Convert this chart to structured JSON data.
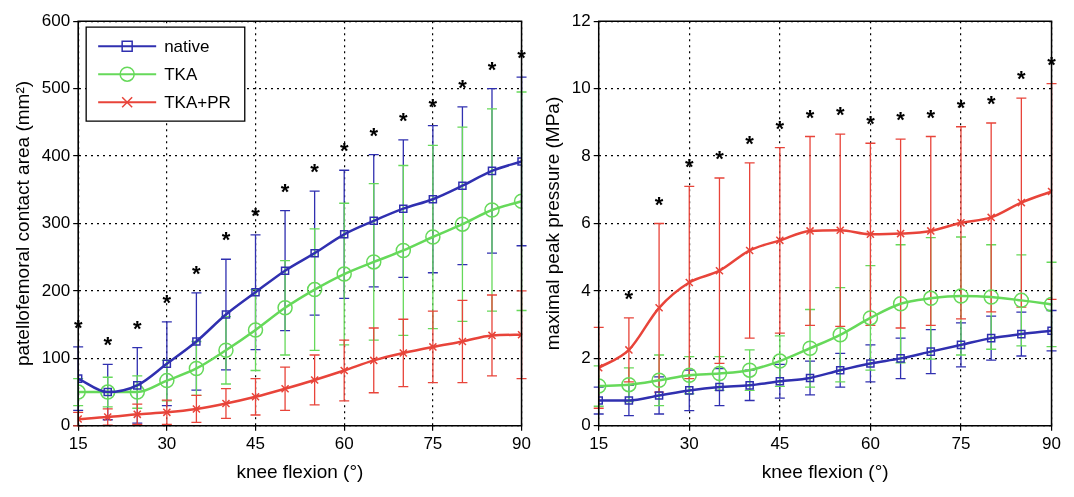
{
  "chart_data": [
    {
      "type": "line",
      "ylabel": "patellofemoral contact area (mm²)",
      "xlabel": "knee flexion (°)",
      "x": [
        15,
        20,
        25,
        30,
        35,
        40,
        45,
        50,
        55,
        60,
        65,
        70,
        75,
        80,
        85,
        90
      ],
      "xlim": [
        15,
        90
      ],
      "xticks": [
        15,
        30,
        45,
        60,
        75,
        90
      ],
      "ylim": [
        0,
        600
      ],
      "yticks": [
        0,
        100,
        200,
        300,
        400,
        500,
        600
      ],
      "grid": true,
      "legend": "top left",
      "series": [
        {
          "name": "native",
          "color": "#3030b0",
          "marker": "square",
          "values": [
            70,
            50,
            60,
            92,
            125,
            165,
            198,
            230,
            256,
            284,
            304,
            322,
            336,
            356,
            378,
            392
          ],
          "errors": [
            47,
            41,
            56,
            62,
            72,
            82,
            85,
            89,
            92,
            95,
            98,
            102,
            109,
            117,
            122,
            125
          ]
        },
        {
          "name": "TKA",
          "color": "#66d95a",
          "marker": "circle",
          "values": [
            50,
            50,
            50,
            67,
            85,
            112,
            142,
            175,
            202,
            225,
            243,
            260,
            280,
            299,
            320,
            333
          ],
          "errors": [
            20,
            22,
            24,
            30,
            40,
            50,
            60,
            70,
            90,
            105,
            116,
            126,
            136,
            144,
            150,
            162
          ]
        },
        {
          "name": "TKA+PR",
          "color": "#e8443a",
          "marker": "cross",
          "values": [
            10,
            13,
            17,
            20,
            25,
            33,
            43,
            55,
            68,
            82,
            97,
            108,
            117,
            125,
            134,
            135
          ],
          "errors": [
            10,
            12,
            15,
            18,
            20,
            22,
            27,
            32,
            37,
            45,
            48,
            50,
            53,
            61,
            60,
            65
          ]
        }
      ],
      "annotations": [
        "*",
        "*",
        "*",
        "*",
        "*",
        "*",
        "*",
        "*",
        "*",
        "*",
        "*",
        "*",
        "*",
        "*",
        "*",
        "*"
      ]
    },
    {
      "type": "line",
      "ylabel": "maximal peak pressure (MPa)",
      "xlabel": "knee flexion (°)",
      "x": [
        15,
        20,
        25,
        30,
        35,
        40,
        45,
        50,
        55,
        60,
        65,
        70,
        75,
        80,
        85,
        90
      ],
      "xlim": [
        15,
        90
      ],
      "xticks": [
        15,
        30,
        45,
        60,
        75,
        90
      ],
      "ylim": [
        0,
        12
      ],
      "yticks": [
        0,
        2,
        4,
        6,
        8,
        10,
        12
      ],
      "grid": true,
      "series": [
        {
          "color": "#3030b0",
          "marker": "square",
          "values": [
            0.75,
            0.75,
            0.9,
            1.05,
            1.15,
            1.2,
            1.32,
            1.42,
            1.65,
            1.85,
            2.0,
            2.2,
            2.4,
            2.6,
            2.72,
            2.82
          ],
          "errors": [
            0.4,
            0.45,
            0.55,
            0.6,
            0.55,
            0.45,
            0.5,
            0.5,
            0.5,
            0.55,
            0.6,
            0.65,
            0.65,
            0.65,
            0.65,
            0.6
          ]
        },
        {
          "color": "#66d95a",
          "marker": "circle",
          "values": [
            1.18,
            1.22,
            1.35,
            1.5,
            1.55,
            1.65,
            1.92,
            2.3,
            2.7,
            3.2,
            3.62,
            3.78,
            3.85,
            3.82,
            3.72,
            3.6
          ],
          "errors": [
            0.6,
            0.5,
            0.75,
            0.55,
            0.5,
            0.6,
            0.75,
            1.15,
            1.4,
            1.55,
            1.75,
            1.8,
            1.75,
            1.55,
            1.35,
            1.25
          ]
        },
        {
          "color": "#e8443a",
          "marker": "cross",
          "values": [
            1.72,
            2.25,
            3.5,
            4.25,
            4.6,
            5.2,
            5.5,
            5.78,
            5.8,
            5.68,
            5.7,
            5.78,
            6.02,
            6.18,
            6.62,
            6.95
          ],
          "errors": [
            1.2,
            0.95,
            2.5,
            2.85,
            2.75,
            2.6,
            2.75,
            2.8,
            2.85,
            2.7,
            2.8,
            2.8,
            2.85,
            2.8,
            3.1,
            3.2
          ]
        }
      ],
      "annotations": [
        "*",
        "*",
        "*",
        "*",
        "*",
        "*",
        "*",
        "*",
        "*",
        "*",
        "*",
        "*",
        "*",
        "*",
        "*"
      ]
    }
  ]
}
